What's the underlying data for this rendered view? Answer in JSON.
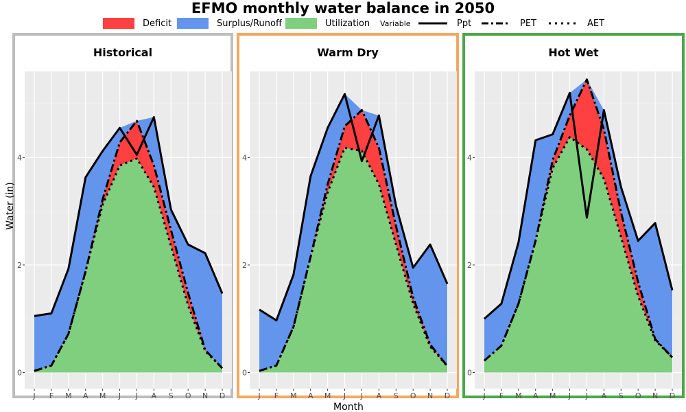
{
  "title": "EFMO monthly water balance in 2050",
  "legend": {
    "fill_items": [
      {
        "label": "Deficit",
        "color": "#ff4040"
      },
      {
        "label": "Surplus/Runoff",
        "color": "#6495ed"
      },
      {
        "label": "Utilization",
        "color": "#7fcf7f"
      }
    ],
    "variable_title": "Variable",
    "line_items": [
      {
        "label": "Ppt",
        "style": "solid"
      },
      {
        "label": "PET",
        "style": "dashdot"
      },
      {
        "label": "AET",
        "style": "dotted"
      }
    ]
  },
  "chart_data": [
    {
      "type": "area",
      "title": "Historical",
      "border_color": "#bdbdbd",
      "x": [
        "J",
        "F",
        "M",
        "A",
        "M",
        "J",
        "J",
        "A",
        "S",
        "O",
        "N",
        "D"
      ],
      "xlabel": "Month",
      "ylabel": "Water (in)",
      "ylim": [
        -0.3,
        5.6
      ],
      "yticks": [
        0,
        2,
        4
      ],
      "series": [
        {
          "name": "Ppt",
          "values": [
            1.05,
            1.1,
            1.93,
            3.63,
            4.12,
            4.55,
            4.05,
            4.75,
            3.03,
            2.38,
            2.22,
            1.47
          ]
        },
        {
          "name": "PET",
          "values": [
            0.03,
            0.13,
            0.72,
            1.88,
            3.22,
            4.28,
            4.68,
            3.85,
            2.65,
            1.48,
            0.42,
            0.08
          ]
        },
        {
          "name": "AET",
          "values": [
            0.03,
            0.13,
            0.72,
            1.88,
            3.12,
            3.85,
            3.98,
            3.45,
            2.35,
            1.25,
            0.4,
            0.08
          ]
        }
      ]
    },
    {
      "type": "area",
      "title": "Warm Dry",
      "border_color": "#f4a860",
      "x": [
        "J",
        "F",
        "M",
        "A",
        "M",
        "J",
        "J",
        "A",
        "S",
        "O",
        "N",
        "D"
      ],
      "xlabel": "Month",
      "ylabel": "Water (in)",
      "ylim": [
        -0.3,
        5.6
      ],
      "yticks": [
        0,
        2,
        4
      ],
      "series": [
        {
          "name": "Ppt",
          "values": [
            1.17,
            0.97,
            1.82,
            3.65,
            4.55,
            5.18,
            3.93,
            4.78,
            3.1,
            1.95,
            2.38,
            1.65
          ]
        },
        {
          "name": "PET",
          "values": [
            0.03,
            0.13,
            0.85,
            2.15,
            3.5,
            4.58,
            4.88,
            4.18,
            2.72,
            1.4,
            0.52,
            0.12
          ]
        },
        {
          "name": "AET",
          "values": [
            0.03,
            0.13,
            0.85,
            2.15,
            3.35,
            4.18,
            4.12,
            3.5,
            2.38,
            1.28,
            0.48,
            0.12
          ]
        }
      ]
    },
    {
      "type": "area",
      "title": "Hot Wet",
      "border_color": "#4ca64c",
      "x": [
        "J",
        "F",
        "M",
        "A",
        "M",
        "J",
        "J",
        "A",
        "S",
        "O",
        "N",
        "D"
      ],
      "xlabel": "Month",
      "ylabel": "Water (in)",
      "ylim": [
        -0.3,
        5.6
      ],
      "yticks": [
        0,
        2,
        4
      ],
      "series": [
        {
          "name": "Ppt",
          "values": [
            1.0,
            1.28,
            2.42,
            4.32,
            4.43,
            5.2,
            2.88,
            4.88,
            3.45,
            2.45,
            2.78,
            1.53
          ]
        },
        {
          "name": "PET",
          "values": [
            0.22,
            0.5,
            1.28,
            2.45,
            3.95,
            4.78,
            5.45,
            4.52,
            2.98,
            1.68,
            0.62,
            0.28
          ]
        },
        {
          "name": "AET",
          "values": [
            0.22,
            0.5,
            1.28,
            2.45,
            3.8,
            4.38,
            4.15,
            3.6,
            2.52,
            1.42,
            0.6,
            0.28
          ]
        }
      ]
    }
  ]
}
